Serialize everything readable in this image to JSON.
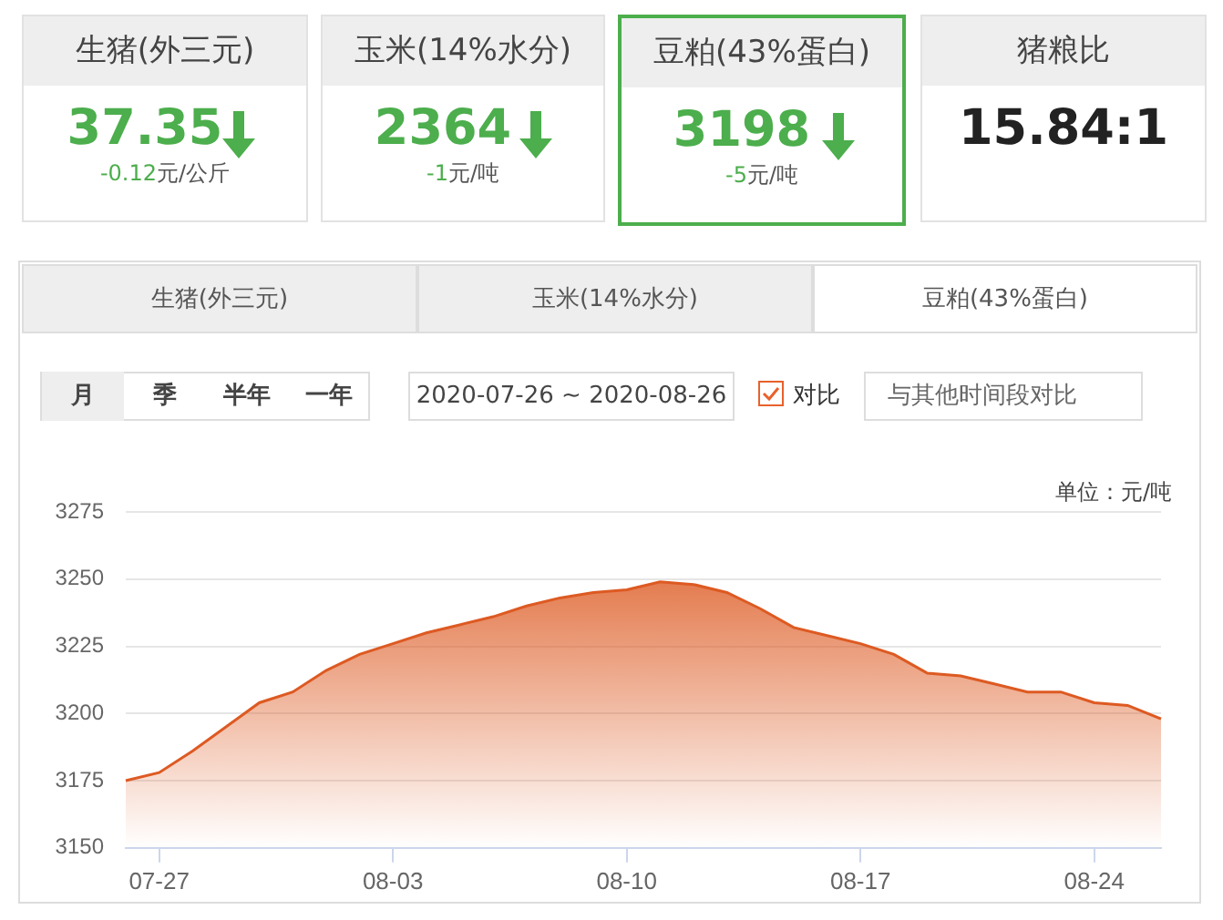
{
  "chart_data": [
    {
      "type": "other",
      "annotations": [
        "生猪(外三元)",
        "37.35",
        "-0.12元/公斤",
        "玉米(14%水分)",
        "2364",
        "-1元/吨",
        "豆粕(43%蛋白)",
        "3198",
        "-5元/吨",
        "猪粮比",
        "15.84:1",
        "生猪(外三元)",
        "玉米(14%水分)",
        "豆粕(43%蛋白)",
        "月",
        "季",
        "半年",
        "一年",
        "2020-07-26 ~ 2020-08-26",
        "对比",
        "与其他时间段对比"
      ]
    },
    {
      "type": "area",
      "ylabel": "单位：元/吨",
      "color": "#dd5a22",
      "grid": "y",
      "ylim": [
        3150,
        3275
      ],
      "yticks": [
        3150,
        3175,
        3200,
        3225,
        3250,
        3275
      ],
      "categories": [
        null,
        "07-27",
        null,
        null,
        null,
        null,
        null,
        null,
        "08-03",
        null,
        null,
        null,
        null,
        null,
        null,
        "08-10",
        null,
        null,
        null,
        null,
        null,
        null,
        "08-17",
        null,
        null,
        null,
        null,
        null,
        null,
        "08-24",
        null,
        null
      ],
      "values": [
        3175,
        3178,
        3186,
        3195,
        3204,
        3208,
        3216,
        3222,
        3226,
        3230,
        3233,
        3236,
        3240,
        3243,
        3245,
        3246,
        3249,
        3248,
        3245,
        3239,
        3232,
        3229,
        3226,
        3222,
        3215,
        3214,
        3211,
        3208,
        3208,
        3204,
        3203,
        3198
      ]
    }
  ]
}
